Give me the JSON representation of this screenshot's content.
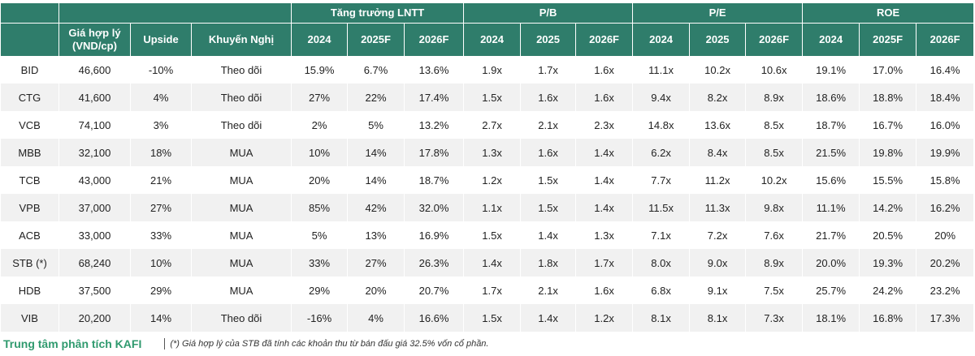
{
  "table": {
    "groups": [
      "Tăng trưởng LNTT",
      "P/B",
      "P/E",
      "ROE"
    ],
    "columns": [
      "Giá hợp lý\n(VND/cp)",
      "Upside",
      "Khuyến Nghị",
      "2024",
      "2025F",
      "2026F",
      "2024",
      "2025",
      "2026F",
      "2024",
      "2025",
      "2026F",
      "2024",
      "2025F",
      "2026F"
    ],
    "rows": [
      [
        "BID",
        "46,600",
        "-10%",
        "Theo dõi",
        "15.9%",
        "6.7%",
        "13.6%",
        "1.9x",
        "1.7x",
        "1.6x",
        "11.1x",
        "10.2x",
        "10.6x",
        "19.1%",
        "17.0%",
        "16.4%"
      ],
      [
        "CTG",
        "41,600",
        "4%",
        "Theo dõi",
        "27%",
        "22%",
        "17.4%",
        "1.5x",
        "1.6x",
        "1.6x",
        "9.4x",
        "8.2x",
        "8.9x",
        "18.6%",
        "18.8%",
        "18.4%"
      ],
      [
        "VCB",
        "74,100",
        "3%",
        "Theo dõi",
        "2%",
        "5%",
        "13.2%",
        "2.7x",
        "2.1x",
        "2.3x",
        "14.8x",
        "13.6x",
        "8.5x",
        "18.7%",
        "16.7%",
        "16.0%"
      ],
      [
        "MBB",
        "32,100",
        "18%",
        "MUA",
        "10%",
        "14%",
        "17.8%",
        "1.3x",
        "1.6x",
        "1.4x",
        "6.2x",
        "8.4x",
        "8.5x",
        "21.5%",
        "19.8%",
        "19.9%"
      ],
      [
        "TCB",
        "43,000",
        "21%",
        "MUA",
        "20%",
        "14%",
        "18.7%",
        "1.2x",
        "1.5x",
        "1.4x",
        "7.7x",
        "11.2x",
        "10.2x",
        "15.6%",
        "15.5%",
        "15.8%"
      ],
      [
        "VPB",
        "37,000",
        "27%",
        "MUA",
        "85%",
        "42%",
        "32.0%",
        "1.1x",
        "1.5x",
        "1.4x",
        "11.5x",
        "11.3x",
        "9.8x",
        "11.1%",
        "14.2%",
        "16.2%"
      ],
      [
        "ACB",
        "33,000",
        "33%",
        "MUA",
        "5%",
        "13%",
        "16.9%",
        "1.5x",
        "1.4x",
        "1.3x",
        "7.1x",
        "7.2x",
        "7.6x",
        "21.7%",
        "20.5%",
        "20%"
      ],
      [
        "STB (*)",
        "68,240",
        "10%",
        "MUA",
        "33%",
        "27%",
        "26.3%",
        "1.4x",
        "1.8x",
        "1.7x",
        "8.0x",
        "9.0x",
        "8.9x",
        "20.0%",
        "19.3%",
        "20.2%"
      ],
      [
        "HDB",
        "37,500",
        "29%",
        "MUA",
        "29%",
        "20%",
        "20.7%",
        "1.7x",
        "2.1x",
        "1.6x",
        "6.8x",
        "9.1x",
        "7.5x",
        "25.7%",
        "24.2%",
        "23.2%"
      ],
      [
        "VIB",
        "20,200",
        "14%",
        "Theo dõi",
        "-16%",
        "4%",
        "16.6%",
        "1.5x",
        "1.4x",
        "1.2x",
        "8.1x",
        "8.1x",
        "7.3x",
        "18.1%",
        "16.8%",
        "17.3%"
      ]
    ]
  },
  "footer": {
    "source": "Trung tâm phân tích KAFI",
    "note": "(*) Giá hợp lý của STB đã tính các khoản thu từ bán đấu giá 32.5% vốn cổ phần."
  }
}
